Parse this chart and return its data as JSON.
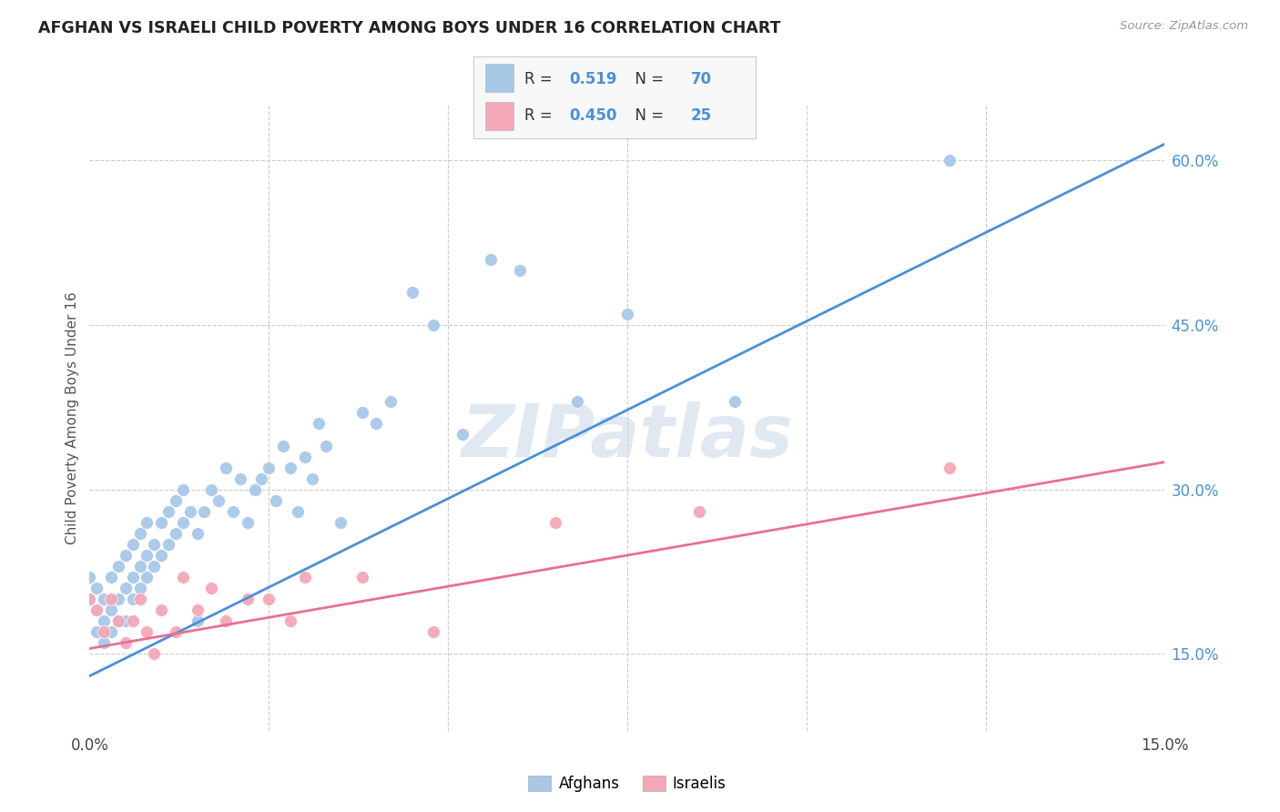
{
  "title": "AFGHAN VS ISRAELI CHILD POVERTY AMONG BOYS UNDER 16 CORRELATION CHART",
  "source": "Source: ZipAtlas.com",
  "ylabel": "Child Poverty Among Boys Under 16",
  "xlim": [
    0.0,
    0.15
  ],
  "ylim": [
    0.08,
    0.65
  ],
  "afghan_R": "0.519",
  "afghan_N": "70",
  "israeli_R": "0.450",
  "israeli_N": "25",
  "afghan_color": "#a8c8e8",
  "israeli_color": "#f4a8b8",
  "line_afghan_color": "#4a90d9",
  "line_israeli_color": "#e87090",
  "watermark": "ZIPatlas",
  "afghan_scatter_x": [
    0.0,
    0.0,
    0.001,
    0.001,
    0.001,
    0.002,
    0.002,
    0.002,
    0.003,
    0.003,
    0.003,
    0.004,
    0.004,
    0.004,
    0.005,
    0.005,
    0.005,
    0.006,
    0.006,
    0.006,
    0.007,
    0.007,
    0.007,
    0.008,
    0.008,
    0.008,
    0.009,
    0.009,
    0.01,
    0.01,
    0.011,
    0.011,
    0.012,
    0.012,
    0.013,
    0.013,
    0.014,
    0.015,
    0.015,
    0.016,
    0.017,
    0.018,
    0.019,
    0.02,
    0.021,
    0.022,
    0.023,
    0.024,
    0.025,
    0.026,
    0.027,
    0.028,
    0.029,
    0.03,
    0.031,
    0.032,
    0.033,
    0.035,
    0.038,
    0.04,
    0.042,
    0.045,
    0.048,
    0.052,
    0.056,
    0.06,
    0.068,
    0.075,
    0.09,
    0.12
  ],
  "afghan_scatter_y": [
    0.2,
    0.22,
    0.17,
    0.19,
    0.21,
    0.16,
    0.18,
    0.2,
    0.17,
    0.19,
    0.22,
    0.18,
    0.2,
    0.23,
    0.18,
    0.21,
    0.24,
    0.2,
    0.22,
    0.25,
    0.21,
    0.23,
    0.26,
    0.22,
    0.24,
    0.27,
    0.23,
    0.25,
    0.24,
    0.27,
    0.25,
    0.28,
    0.26,
    0.29,
    0.27,
    0.3,
    0.28,
    0.18,
    0.26,
    0.28,
    0.3,
    0.29,
    0.32,
    0.28,
    0.31,
    0.27,
    0.3,
    0.31,
    0.32,
    0.29,
    0.34,
    0.32,
    0.28,
    0.33,
    0.31,
    0.36,
    0.34,
    0.27,
    0.37,
    0.36,
    0.38,
    0.48,
    0.45,
    0.35,
    0.51,
    0.5,
    0.38,
    0.46,
    0.38,
    0.6
  ],
  "israeli_scatter_x": [
    0.0,
    0.001,
    0.002,
    0.003,
    0.004,
    0.005,
    0.006,
    0.007,
    0.008,
    0.009,
    0.01,
    0.012,
    0.013,
    0.015,
    0.017,
    0.019,
    0.022,
    0.025,
    0.028,
    0.03,
    0.038,
    0.048,
    0.065,
    0.085,
    0.12
  ],
  "israeli_scatter_y": [
    0.2,
    0.19,
    0.17,
    0.2,
    0.18,
    0.16,
    0.18,
    0.2,
    0.17,
    0.15,
    0.19,
    0.17,
    0.22,
    0.19,
    0.21,
    0.18,
    0.2,
    0.2,
    0.18,
    0.22,
    0.22,
    0.17,
    0.27,
    0.28,
    0.32
  ],
  "afghan_line_x": [
    0.0,
    0.15
  ],
  "afghan_line_y": [
    0.13,
    0.615
  ],
  "israeli_line_x": [
    0.0,
    0.15
  ],
  "israeli_line_y": [
    0.155,
    0.325
  ]
}
